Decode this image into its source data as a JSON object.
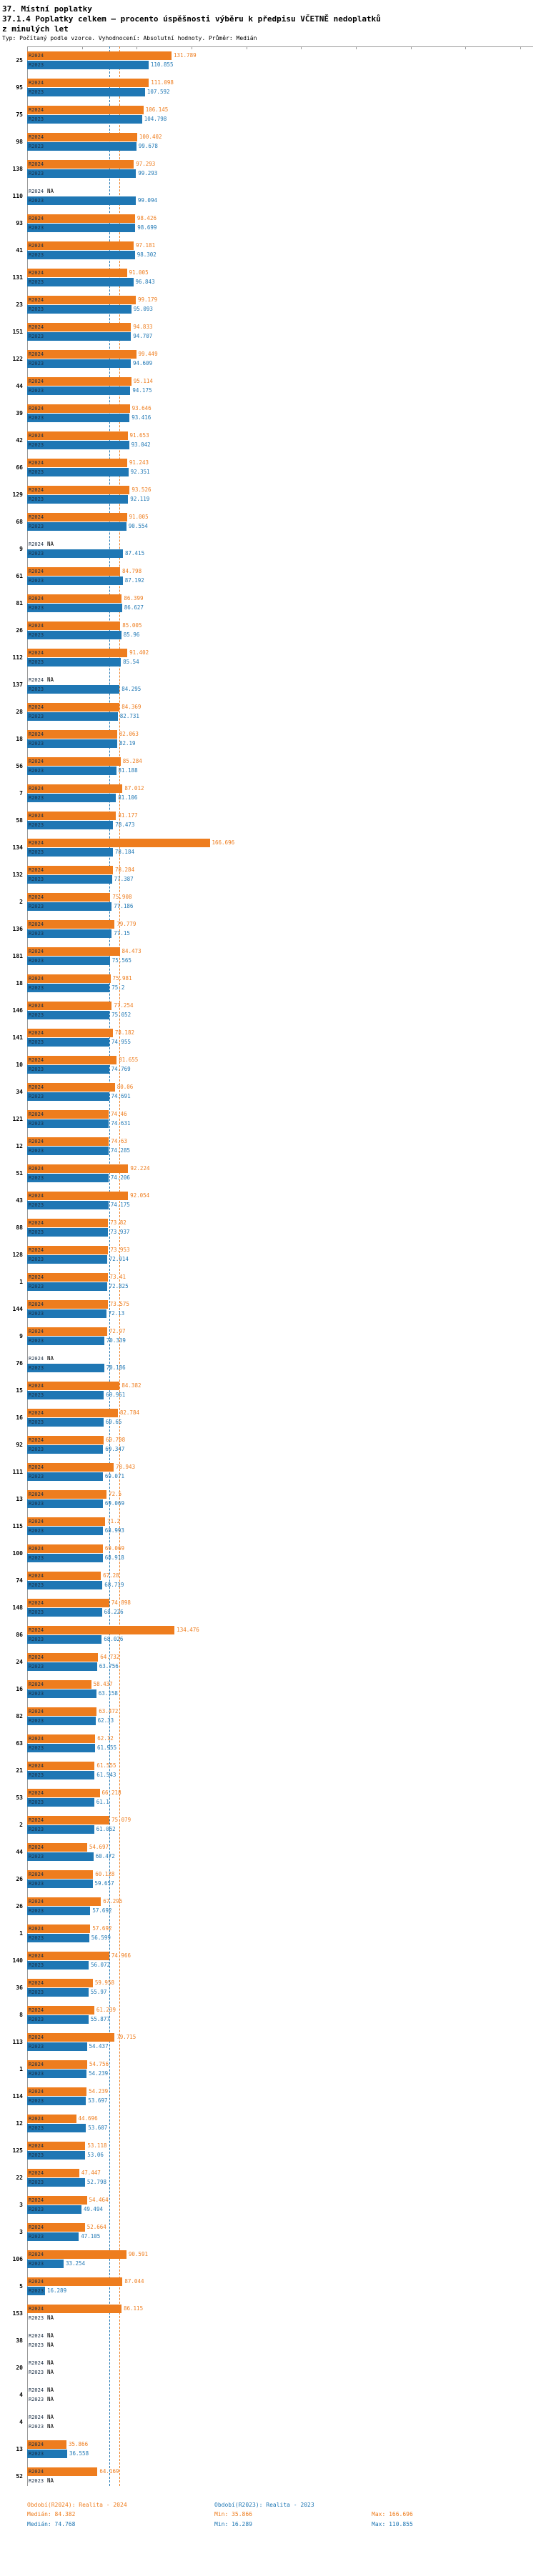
{
  "header": {
    "title": "37. Místní poplatky",
    "subtitle_line1": "37.1.4 Poplatky celkem – procento úspěšnosti výběru k předpisu VČETNĚ nedoplatků",
    "subtitle_line2": "z minulých let",
    "meta": "Typ: Počítaný podle vzorce. Vyhodnocení: Absolutní hodnoty. Průměr: Medián"
  },
  "chart_data": {
    "type": "bar",
    "orientation": "horizontal",
    "series_names": [
      "R2024",
      "R2023"
    ],
    "colors": {
      "r2024": "#ee7d1e",
      "r2023": "#1f77b4"
    },
    "na_label": "NA",
    "axis": {
      "min": 0,
      "max": 450,
      "tick_step": 50
    },
    "medians": {
      "r2024": 84.382,
      "r2023": 74.768
    },
    "stats": {
      "r2024": {
        "median": 84.382,
        "min": 35.866,
        "max": 166.696
      },
      "r2023": {
        "median": 74.768,
        "min": 16.289,
        "max": 110.855
      }
    },
    "rows": [
      {
        "label": "25",
        "r2024": 131.789,
        "r2023": 110.855
      },
      {
        "label": "95",
        "r2024": 111.098,
        "r2023": 107.592
      },
      {
        "label": "75",
        "r2024": 106.145,
        "r2023": 104.798
      },
      {
        "label": "98",
        "r2024": 100.402,
        "r2023": 99.678
      },
      {
        "label": "138",
        "r2024": 97.293,
        "r2023": 99.293
      },
      {
        "label": "110",
        "r2024": null,
        "r2023": 99.094
      },
      {
        "label": "93",
        "r2024": 98.426,
        "r2023": 98.699
      },
      {
        "label": "41",
        "r2024": 97.181,
        "r2023": 98.302
      },
      {
        "label": "131",
        "r2024": 91.005,
        "r2023": 96.843
      },
      {
        "label": "23",
        "r2024": 99.179,
        "r2023": 95.093
      },
      {
        "label": "151",
        "r2024": 94.833,
        "r2023": 94.707
      },
      {
        "label": "122",
        "r2024": 99.449,
        "r2023": 94.609
      },
      {
        "label": "44",
        "r2024": 95.114,
        "r2023": 94.175
      },
      {
        "label": "39",
        "r2024": 93.646,
        "r2023": 93.416
      },
      {
        "label": "42",
        "r2024": 91.653,
        "r2023": 93.042
      },
      {
        "label": "66",
        "r2024": 91.243,
        "r2023": 92.351
      },
      {
        "label": "129",
        "r2024": 93.526,
        "r2023": 92.119
      },
      {
        "label": "68",
        "r2024": 91.005,
        "r2023": 90.554
      },
      {
        "label": "9",
        "r2024": null,
        "r2023": 87.415
      },
      {
        "label": "61",
        "r2024": 84.798,
        "r2023": 87.192
      },
      {
        "label": "81",
        "r2024": 86.399,
        "r2023": 86.627
      },
      {
        "label": "26",
        "r2024": 85.005,
        "r2023": 85.96
      },
      {
        "label": "112",
        "r2024": 91.402,
        "r2023": 85.54
      },
      {
        "label": "137",
        "r2024": null,
        "r2023": 84.295
      },
      {
        "label": "28",
        "r2024": 84.369,
        "r2023": 82.731
      },
      {
        "label": "18",
        "r2024": 82.063,
        "r2023": 82.19
      },
      {
        "label": "56",
        "r2024": 85.284,
        "r2023": 81.188
      },
      {
        "label": "7",
        "r2024": 87.012,
        "r2023": 81.106
      },
      {
        "label": "58",
        "r2024": 81.177,
        "r2023": 78.473
      },
      {
        "label": "134",
        "r2024": 166.696,
        "r2023": 78.184
      },
      {
        "label": "132",
        "r2024": 78.284,
        "r2023": 77.387
      },
      {
        "label": "2",
        "r2024": 75.908,
        "r2023": 77.186
      },
      {
        "label": "136",
        "r2024": 79.779,
        "r2023": 77.15
      },
      {
        "label": "181",
        "r2024": 84.473,
        "r2023": 75.565
      },
      {
        "label": "18",
        "r2024": 75.981,
        "r2023": 75.2
      },
      {
        "label": "146",
        "r2024": 77.254,
        "r2023": 75.052
      },
      {
        "label": "141",
        "r2024": 78.182,
        "r2023": 74.955
      },
      {
        "label": "10",
        "r2024": 81.655,
        "r2023": 74.769
      },
      {
        "label": "34",
        "r2024": 80.06,
        "r2023": 74.691
      },
      {
        "label": "121",
        "r2024": 74.46,
        "r2023": 74.631
      },
      {
        "label": "12",
        "r2024": 74.63,
        "r2023": 74.285
      },
      {
        "label": "51",
        "r2024": 92.224,
        "r2023": 74.206
      },
      {
        "label": "43",
        "r2024": 92.054,
        "r2023": 74.175
      },
      {
        "label": "88",
        "r2024": 73.82,
        "r2023": 73.937
      },
      {
        "label": "128",
        "r2024": 73.953,
        "r2023": 72.914
      },
      {
        "label": "1",
        "r2024": 73.41,
        "r2023": 72.825
      },
      {
        "label": "144",
        "r2024": 73.575,
        "r2023": 72.13
      },
      {
        "label": "9",
        "r2024": 72.97,
        "r2023": 70.339
      },
      {
        "label": "76",
        "r2024": null,
        "r2023": 70.186
      },
      {
        "label": "15",
        "r2024": 84.382,
        "r2023": 69.951
      },
      {
        "label": "16",
        "r2024": 82.784,
        "r2023": 69.65
      },
      {
        "label": "92",
        "r2024": 69.798,
        "r2023": 69.347
      },
      {
        "label": "111",
        "r2024": 78.943,
        "r2023": 69.071
      },
      {
        "label": "13",
        "r2024": 72.5,
        "r2023": 69.069
      },
      {
        "label": "115",
        "r2024": 71.2,
        "r2023": 68.993
      },
      {
        "label": "100",
        "r2024": 69.069,
        "r2023": 68.918
      },
      {
        "label": "74",
        "r2024": 67.28,
        "r2023": 68.719
      },
      {
        "label": "148",
        "r2024": 74.898,
        "r2023": 68.226
      },
      {
        "label": "86",
        "r2024": 134.476,
        "r2023": 68.026
      },
      {
        "label": "24",
        "r2024": 64.732,
        "r2023": 63.756
      },
      {
        "label": "16",
        "r2024": 58.437,
        "r2023": 63.158
      },
      {
        "label": "82",
        "r2024": 63.472,
        "r2023": 62.33
      },
      {
        "label": "63",
        "r2024": 62.12,
        "r2023": 61.955
      },
      {
        "label": "21",
        "r2024": 61.555,
        "r2023": 61.543
      },
      {
        "label": "53",
        "r2024": 66.218,
        "r2023": 61.1
      },
      {
        "label": "2",
        "r2024": 75.079,
        "r2023": 61.062
      },
      {
        "label": "44",
        "r2024": 54.697,
        "r2023": 60.472
      },
      {
        "label": "26",
        "r2024": 60.128,
        "r2023": 59.657
      },
      {
        "label": "26",
        "r2024": 67.295,
        "r2023": 57.692
      },
      {
        "label": "1",
        "r2024": 57.692,
        "r2023": 56.599
      },
      {
        "label": "140",
        "r2024": 74.966,
        "r2023": 56.072
      },
      {
        "label": "36",
        "r2024": 59.958,
        "r2023": 55.97
      },
      {
        "label": "8",
        "r2024": 61.239,
        "r2023": 55.877
      },
      {
        "label": "113",
        "r2024": 79.715,
        "r2023": 54.437
      },
      {
        "label": "1",
        "r2024": 54.756,
        "r2023": 54.239
      },
      {
        "label": "114",
        "r2024": 54.239,
        "r2023": 53.697
      },
      {
        "label": "12",
        "r2024": 44.696,
        "r2023": 53.607
      },
      {
        "label": "125",
        "r2024": 53.118,
        "r2023": 53.06
      },
      {
        "label": "22",
        "r2024": 47.447,
        "r2023": 52.798
      },
      {
        "label": "3",
        "r2024": 54.464,
        "r2023": 49.494
      },
      {
        "label": "3",
        "r2024": 52.664,
        "r2023": 47.105
      },
      {
        "label": "106",
        "r2024": 90.591,
        "r2023": 33.254
      },
      {
        "label": "5",
        "r2024": 87.044,
        "r2023": 16.289
      },
      {
        "label": "153",
        "r2024": 86.115,
        "r2023": null
      },
      {
        "label": "38",
        "r2024": null,
        "r2023": null
      },
      {
        "label": "20",
        "r2024": null,
        "r2023": null
      },
      {
        "label": "4",
        "r2024": null,
        "r2023": null
      },
      {
        "label": "4",
        "r2024": null,
        "r2023": null
      },
      {
        "label": "13",
        "r2024": 35.866,
        "r2023": 36.558
      },
      {
        "label": "52",
        "r2024": 64.169,
        "r2023": null
      }
    ]
  },
  "legend": {
    "period_2024": "Období(R2024): Realita - 2024",
    "period_2023": "Období(R2023): Realita - 2023",
    "stats_2024": {
      "median": "Medián: 84.382",
      "min": "Min: 35.866",
      "max": "Max: 166.696"
    },
    "stats_2023": {
      "median": "Medián: 74.768",
      "min": "Min: 16.289",
      "max": "Max: 110.855"
    }
  }
}
